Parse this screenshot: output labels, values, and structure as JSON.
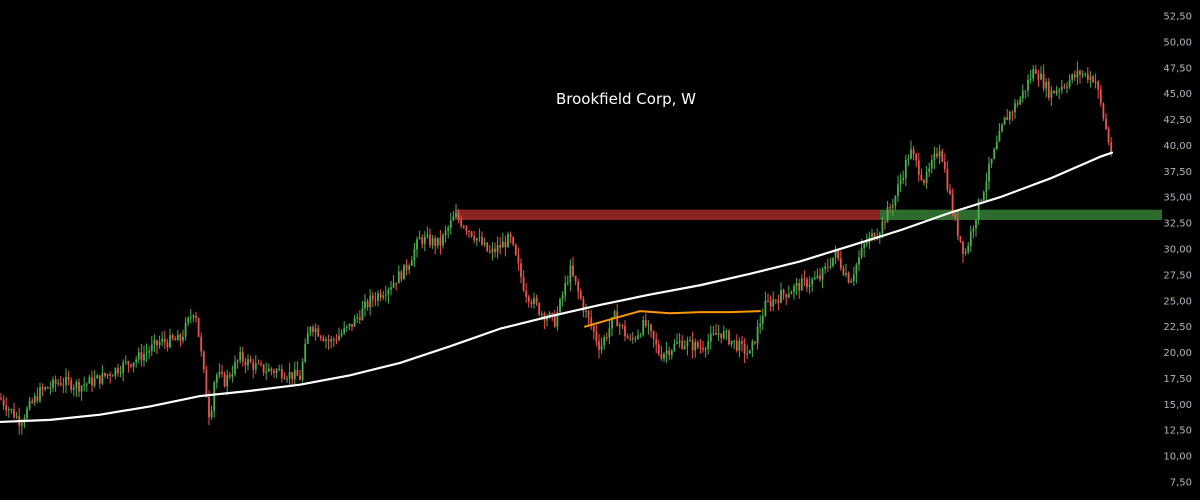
{
  "chart_data": {
    "type": "candlestick",
    "title": "Brookfield Corp, W",
    "ylim": [
      7.5,
      52.5
    ],
    "y_ticks": [
      "52,50",
      "50,00",
      "47,50",
      "45,00",
      "42,50",
      "40,00",
      "37,50",
      "35,00",
      "32,50",
      "30,00",
      "27,50",
      "25,00",
      "22,50",
      "20,00",
      "17,50",
      "15,00",
      "12,50",
      "10,00",
      "7,50"
    ],
    "y_tick_values": [
      52.5,
      50,
      47.5,
      45,
      42.5,
      40,
      37.5,
      35,
      32.5,
      30,
      27.5,
      25,
      22.5,
      20,
      17.5,
      15,
      12.5,
      10,
      7.5
    ],
    "grid": false,
    "colors": {
      "background": "#000000",
      "up": "#26a69a",
      "up_green": "#4caf50",
      "down": "#ef5350",
      "ma_long": "#ffffff",
      "ma_mid": "#ff9800",
      "resistance_zone": "#8b2323",
      "support_zone": "#2e6b2e",
      "text": "#ffffff",
      "axis_text": "#b2b5be"
    },
    "price_path": [
      [
        0,
        15.6
      ],
      [
        20,
        13.4
      ],
      [
        40,
        16.2
      ],
      [
        60,
        17.2
      ],
      [
        80,
        16.8
      ],
      [
        100,
        17.5
      ],
      [
        120,
        18.6
      ],
      [
        140,
        19.6
      ],
      [
        160,
        21.0
      ],
      [
        180,
        21.2
      ],
      [
        195,
        24.4
      ],
      [
        205,
        17.0
      ],
      [
        210,
        13.5
      ],
      [
        215,
        18.0
      ],
      [
        225,
        17.2
      ],
      [
        240,
        19.5
      ],
      [
        260,
        18.4
      ],
      [
        280,
        18.2
      ],
      [
        300,
        17.6
      ],
      [
        310,
        22.8
      ],
      [
        330,
        21.0
      ],
      [
        350,
        22.5
      ],
      [
        370,
        25.0
      ],
      [
        390,
        26.5
      ],
      [
        405,
        28.0
      ],
      [
        420,
        31.0
      ],
      [
        440,
        30.5
      ],
      [
        455,
        33.2
      ],
      [
        470,
        31.8
      ],
      [
        490,
        29.5
      ],
      [
        510,
        31.0
      ],
      [
        525,
        26.0
      ],
      [
        540,
        24.0
      ],
      [
        555,
        23.0
      ],
      [
        570,
        28.0
      ],
      [
        585,
        24.0
      ],
      [
        600,
        20.5
      ],
      [
        615,
        23.5
      ],
      [
        630,
        21.0
      ],
      [
        645,
        22.8
      ],
      [
        660,
        19.8
      ],
      [
        680,
        21.0
      ],
      [
        700,
        20.5
      ],
      [
        720,
        22.0
      ],
      [
        740,
        20.5
      ],
      [
        750,
        19.8
      ],
      [
        765,
        24.5
      ],
      [
        780,
        25.5
      ],
      [
        800,
        26.5
      ],
      [
        820,
        27.2
      ],
      [
        835,
        29.5
      ],
      [
        850,
        27.0
      ],
      [
        865,
        30.5
      ],
      [
        880,
        32.0
      ],
      [
        895,
        35.0
      ],
      [
        910,
        39.5
      ],
      [
        925,
        36.5
      ],
      [
        940,
        40.0
      ],
      [
        955,
        32.5
      ],
      [
        965,
        29.5
      ],
      [
        975,
        33.0
      ],
      [
        990,
        38.0
      ],
      [
        1005,
        42.5
      ],
      [
        1020,
        44.5
      ],
      [
        1035,
        47.5
      ],
      [
        1050,
        45.0
      ],
      [
        1065,
        46.0
      ],
      [
        1080,
        47.0
      ],
      [
        1095,
        46.5
      ],
      [
        1105,
        42.0
      ],
      [
        1112,
        39.0
      ]
    ],
    "ma_long": {
      "x": [
        0,
        50,
        100,
        150,
        200,
        250,
        300,
        350,
        400,
        450,
        500,
        550,
        600,
        650,
        700,
        750,
        800,
        850,
        900,
        950,
        1000,
        1050,
        1100,
        1112
      ],
      "y": [
        13.3,
        13.5,
        14.0,
        14.8,
        15.8,
        16.3,
        16.9,
        17.8,
        19.0,
        20.6,
        22.3,
        23.5,
        24.6,
        25.6,
        26.5,
        27.6,
        28.8,
        30.3,
        31.8,
        33.5,
        35.0,
        36.8,
        38.9,
        39.3
      ]
    },
    "ma_mid": {
      "x": [
        585,
        610,
        640,
        670,
        700,
        730,
        760
      ],
      "y": [
        22.5,
        23.2,
        24.0,
        23.8,
        23.9,
        23.9,
        24.0
      ]
    },
    "zones": [
      {
        "type": "resistance",
        "x_start": 455,
        "x_end": 880,
        "y_low": 32.8,
        "y_high": 33.8
      },
      {
        "type": "support",
        "x_start": 880,
        "x_end": 1162,
        "y_low": 32.8,
        "y_high": 33.8
      }
    ]
  }
}
